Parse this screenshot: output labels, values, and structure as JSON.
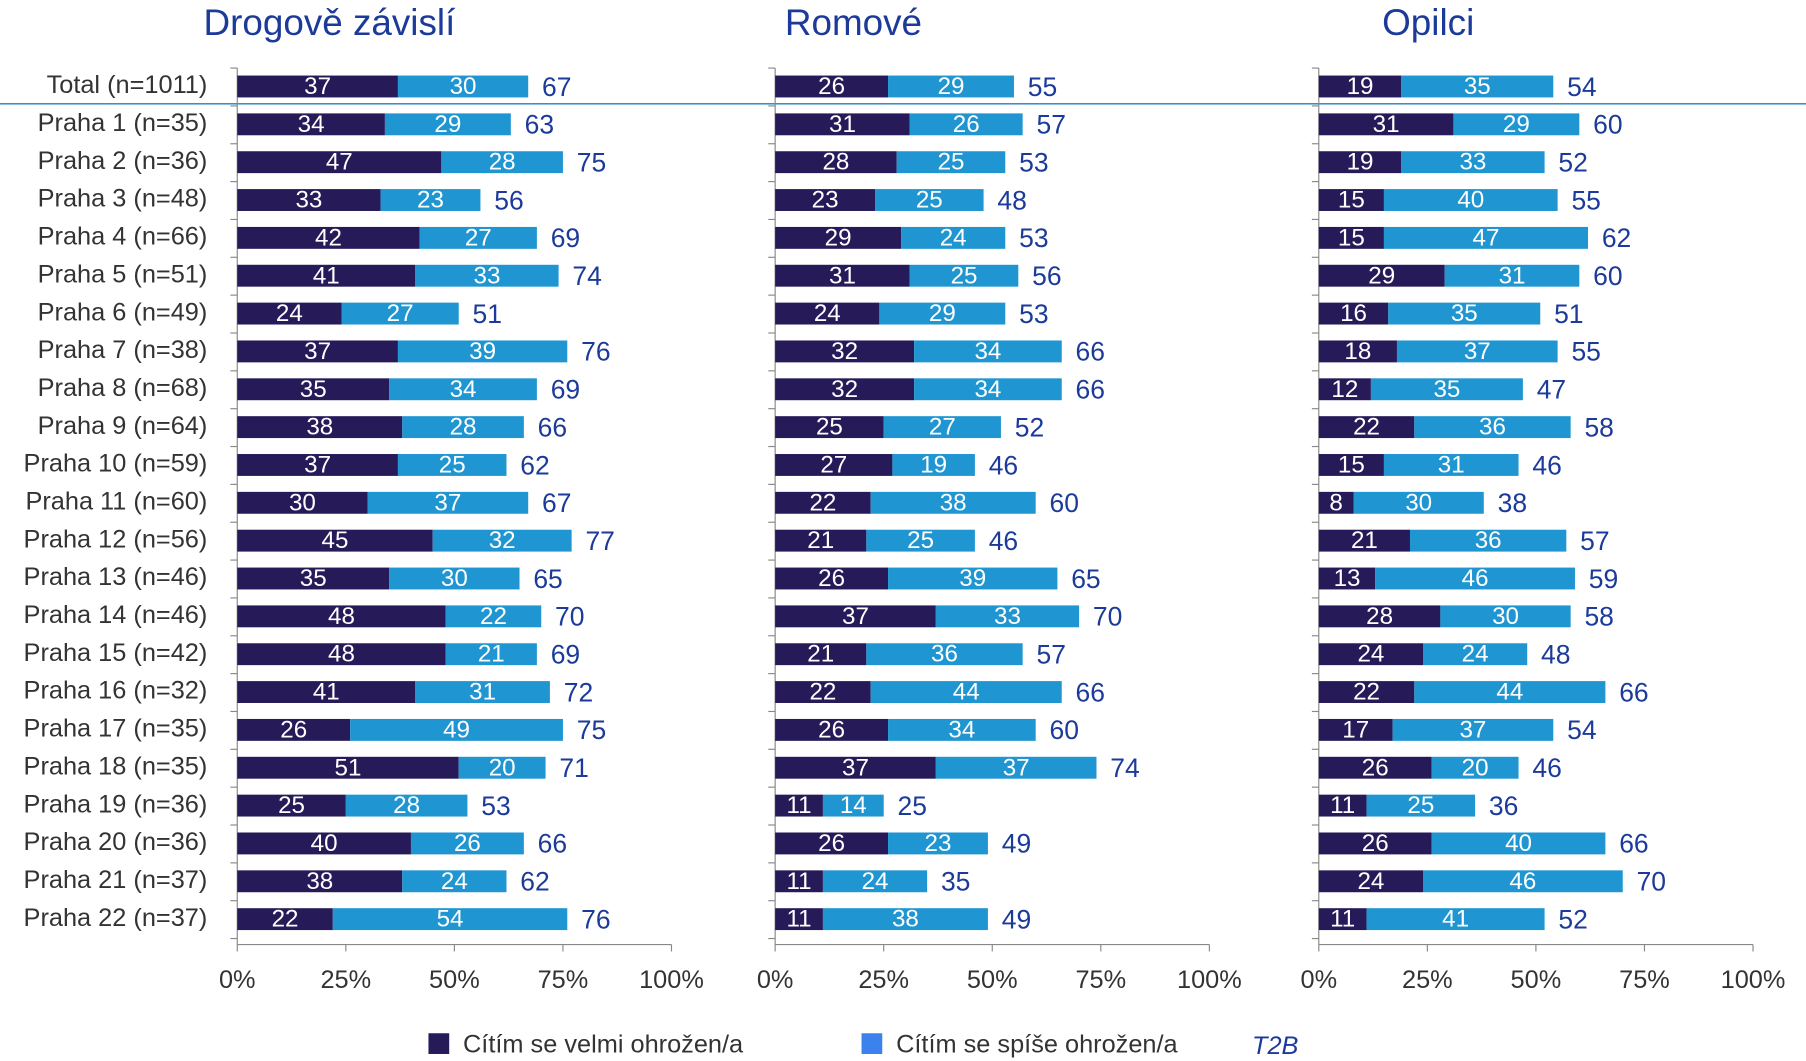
{
  "chart_data": [
    {
      "type": "bar",
      "orientation": "horizontal",
      "stacked": true,
      "title": "Drogově závislí",
      "categories": [
        "Total (n=1011)",
        "Praha 1 (n=35)",
        "Praha 2 (n=36)",
        "Praha 3 (n=48)",
        "Praha 4 (n=66)",
        "Praha 5 (n=51)",
        "Praha 6 (n=49)",
        "Praha 7 (n=38)",
        "Praha 8 (n=68)",
        "Praha 9 (n=64)",
        "Praha 10 (n=59)",
        "Praha 11 (n=60)",
        "Praha 12 (n=56)",
        "Praha 13 (n=46)",
        "Praha 14 (n=46)",
        "Praha 15 (n=42)",
        "Praha 16 (n=32)",
        "Praha 17 (n=35)",
        "Praha 18 (n=35)",
        "Praha 19 (n=36)",
        "Praha 20 (n=36)",
        "Praha 21 (n=37)",
        "Praha 22 (n=37)"
      ],
      "series": [
        {
          "name": "Cítím se velmi ohrožen/a",
          "color": "#271a58",
          "values": [
            37,
            34,
            47,
            33,
            42,
            41,
            24,
            37,
            35,
            38,
            37,
            30,
            45,
            35,
            48,
            48,
            41,
            26,
            51,
            25,
            40,
            38,
            22
          ]
        },
        {
          "name": "Cítím se spíše ohrožen/a",
          "color": "#1f96d1",
          "values": [
            30,
            29,
            28,
            23,
            27,
            33,
            27,
            39,
            34,
            28,
            25,
            37,
            32,
            30,
            22,
            21,
            31,
            49,
            20,
            28,
            26,
            24,
            54
          ]
        }
      ],
      "totals": [
        67,
        63,
        75,
        56,
        69,
        74,
        51,
        76,
        69,
        66,
        62,
        67,
        77,
        65,
        70,
        69,
        72,
        75,
        71,
        53,
        66,
        62,
        76
      ],
      "xlim": [
        0,
        100
      ],
      "xticks": [
        {
          "value": 0,
          "label": "0%"
        },
        {
          "value": 25,
          "label": "25%"
        },
        {
          "value": 50,
          "label": "50%"
        },
        {
          "value": 75,
          "label": "75%"
        },
        {
          "value": 100,
          "label": "100%"
        }
      ]
    },
    {
      "type": "bar",
      "orientation": "horizontal",
      "stacked": true,
      "title": "Romové",
      "series": [
        {
          "color": "#271a58",
          "values": [
            26,
            31,
            28,
            23,
            29,
            31,
            24,
            32,
            32,
            25,
            27,
            22,
            21,
            26,
            37,
            21,
            22,
            26,
            37,
            11,
            26,
            11,
            11
          ]
        },
        {
          "color": "#1f96d1",
          "values": [
            29,
            26,
            25,
            25,
            24,
            25,
            29,
            34,
            34,
            27,
            19,
            38,
            25,
            39,
            33,
            36,
            44,
            34,
            37,
            14,
            23,
            24,
            38
          ]
        }
      ],
      "totals": [
        55,
        57,
        53,
        48,
        53,
        56,
        53,
        66,
        66,
        52,
        46,
        60,
        46,
        65,
        70,
        57,
        66,
        60,
        74,
        25,
        49,
        35,
        49
      ],
      "xlim": [
        0,
        100
      ],
      "xticks": [
        {
          "value": 0,
          "label": "0%"
        },
        {
          "value": 25,
          "label": "25%"
        },
        {
          "value": 50,
          "label": "50%"
        },
        {
          "value": 75,
          "label": "75%"
        },
        {
          "value": 100,
          "label": "100%"
        }
      ]
    },
    {
      "type": "bar",
      "orientation": "horizontal",
      "stacked": true,
      "title": "Opilci",
      "series": [
        {
          "color": "#271a58",
          "values": [
            19,
            31,
            19,
            15,
            15,
            29,
            16,
            18,
            12,
            22,
            15,
            8,
            21,
            13,
            28,
            24,
            22,
            17,
            26,
            11,
            26,
            24,
            11
          ]
        },
        {
          "color": "#1f96d1",
          "values": [
            35,
            29,
            33,
            40,
            47,
            31,
            35,
            37,
            35,
            36,
            31,
            30,
            36,
            46,
            30,
            24,
            44,
            37,
            20,
            25,
            40,
            46,
            41
          ]
        }
      ],
      "totals": [
        54,
        60,
        52,
        55,
        62,
        60,
        51,
        55,
        47,
        58,
        46,
        38,
        57,
        59,
        58,
        48,
        66,
        54,
        46,
        36,
        66,
        70,
        52
      ],
      "xlim": [
        0,
        100
      ],
      "xticks": [
        {
          "value": 0,
          "label": "0%"
        },
        {
          "value": 25,
          "label": "25%"
        },
        {
          "value": 50,
          "label": "50%"
        },
        {
          "value": 75,
          "label": "75%"
        },
        {
          "value": 100,
          "label": "100%"
        }
      ]
    }
  ],
  "legend_note": "T2B"
}
